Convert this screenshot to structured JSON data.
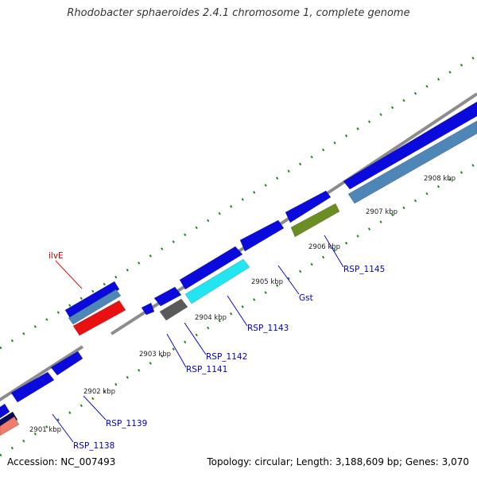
{
  "title": "Rhodobacter sphaeroides 2.4.1 chromosome 1, complete genome",
  "footer": {
    "accession": "Accession: NC_007493",
    "stats": "Topology: circular; Length: 3,188,609 bp; Genes: 3,070"
  },
  "kbp_labels": [
    "2901 kbp",
    "2902 kbp",
    "2903 kbp",
    "2904 kbp",
    "2905 kbp",
    "2906 kbp",
    "2907 kbp",
    "2908 kbp"
  ],
  "gene_labels": [
    {
      "text": "ilvE",
      "color": "#cc0000"
    },
    {
      "text": "RSP_1138",
      "color": "#0000cc"
    },
    {
      "text": "RSP_1139",
      "color": "#0000cc"
    },
    {
      "text": "RSP_1141",
      "color": "#0000cc"
    },
    {
      "text": "RSP_1142",
      "color": "#0000cc"
    },
    {
      "text": "RSP_1143",
      "color": "#0000cc"
    },
    {
      "text": "Gst",
      "color": "#0000cc"
    },
    {
      "text": "RSP_1145",
      "color": "#0000cc"
    }
  ],
  "colors": {
    "backbone": "#8c8c8c",
    "tick": "#1f8a1f",
    "cds_forward": "#0a0adc",
    "cds_reverse": "#4f86b8",
    "cyan_feature": "#22e5f2",
    "gray_feature": "#5a5a5a",
    "olive_feature": "#6b8e23",
    "red_feature": "#e81010",
    "salmon_feature": "#f07d6b",
    "navy_feature": "#0a0a5a"
  }
}
